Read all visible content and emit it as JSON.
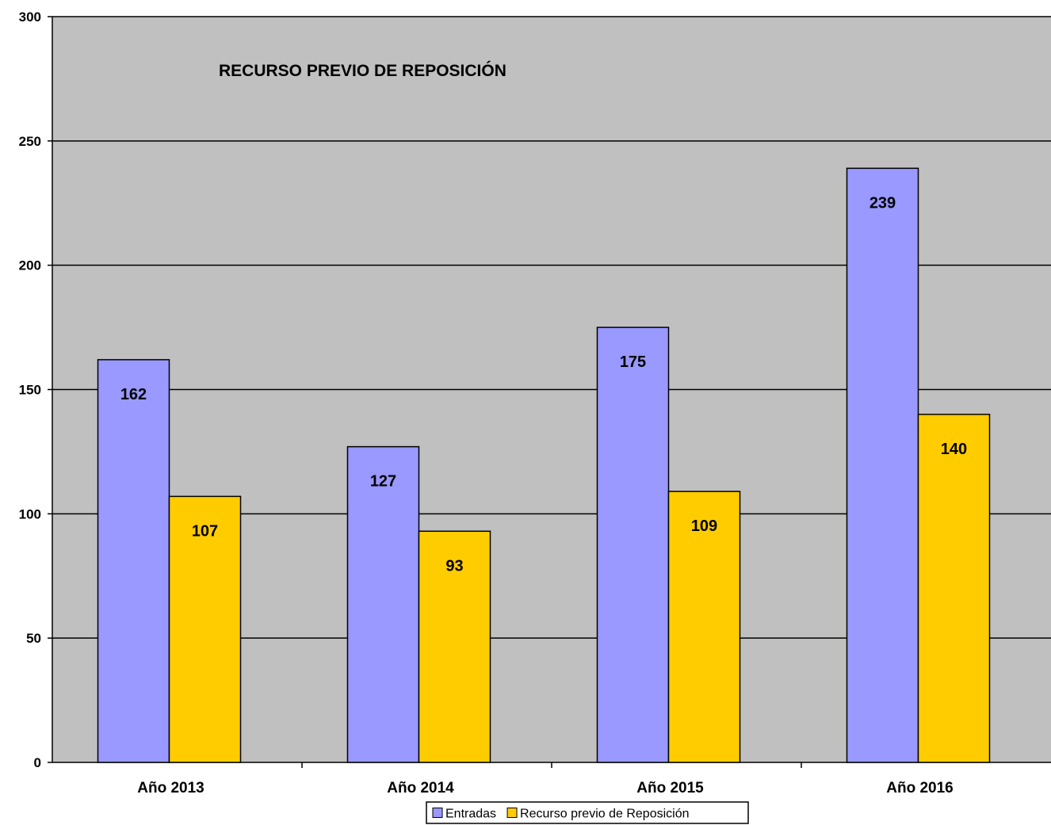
{
  "chart_data": {
    "type": "bar",
    "title": "RECURSO PREVIO DE REPOSICIÓN",
    "categories": [
      "Año 2013",
      "Año 2014",
      "Año 2015",
      "Año 2016"
    ],
    "series": [
      {
        "name": "Entradas",
        "values": [
          162,
          127,
          175,
          239
        ],
        "color": "#9999ff"
      },
      {
        "name": "Recurso previo de Reposición",
        "values": [
          107,
          93,
          109,
          140
        ],
        "color": "#ffcc00"
      }
    ],
    "ylim": [
      0,
      300
    ],
    "yticks": [
      0,
      50,
      100,
      150,
      200,
      250,
      300
    ],
    "grid": true,
    "legend_position": "bottom",
    "plot_background": "#c0c0c0"
  }
}
